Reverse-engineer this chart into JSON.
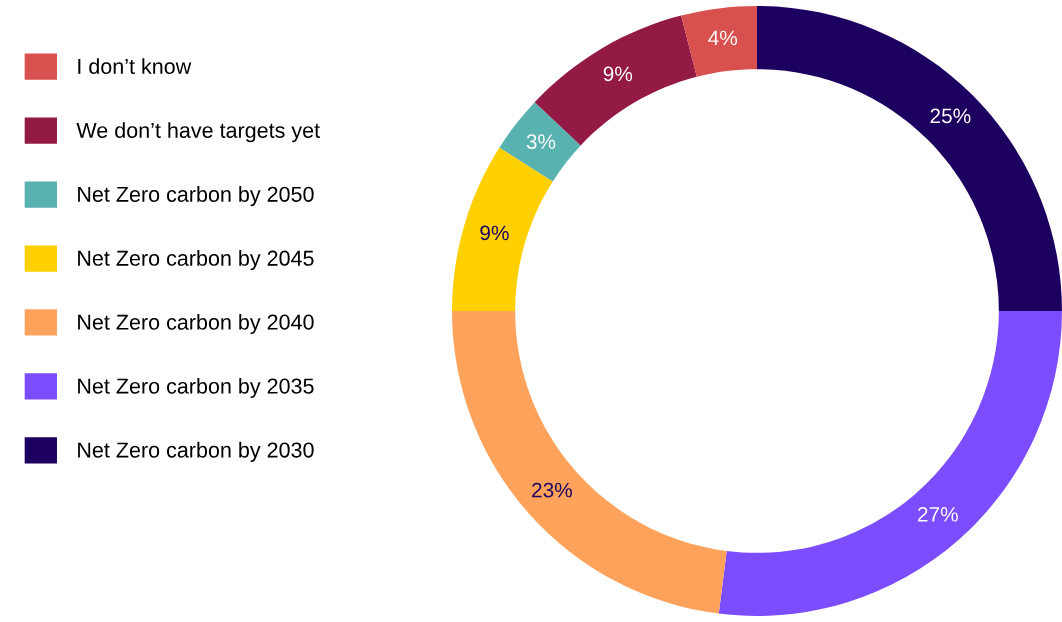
{
  "chart_data": {
    "type": "donut",
    "categories": [
      "Net Zero carbon by 2030",
      "Net Zero carbon by 2035",
      "Net Zero carbon by 2040",
      "Net Zero carbon by 2045",
      "Net Zero carbon by 2050",
      "We don’t have targets yet",
      "I don’t know"
    ],
    "values": [
      25,
      27,
      23,
      9,
      3,
      9,
      4
    ],
    "value_labels": [
      "25%",
      "27%",
      "23%",
      "9%",
      "3%",
      "9%",
      "4%"
    ],
    "colors": [
      "#1c0060",
      "#7b4dff",
      "#ffa35c",
      "#ffd000",
      "#57b2b0",
      "#931a45",
      "#d9514e"
    ],
    "legend": "left"
  }
}
